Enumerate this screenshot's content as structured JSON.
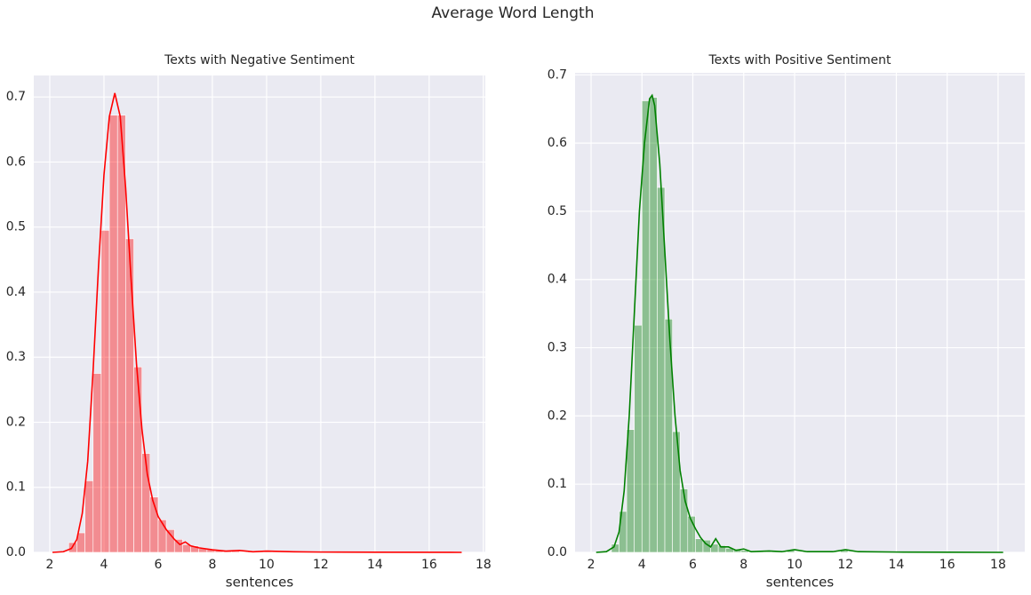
{
  "title": "Average Word Length",
  "chart_data": [
    {
      "type": "histogram",
      "title": "Texts with Negative Sentiment",
      "xlabel": "sentences",
      "color": "red",
      "grid": true,
      "xlim": [
        1.41,
        18.07
      ],
      "ylim": [
        0,
        0.733
      ],
      "xticks": [
        2,
        4,
        6,
        8,
        10,
        12,
        14,
        16,
        18
      ],
      "yticks": [
        {
          "value": 0,
          "label": "0.0"
        },
        0.1,
        0.2,
        0.3,
        0.4,
        0.5,
        0.6,
        0.7
      ],
      "bins": [
        2.1,
        2.4,
        2.7,
        3.0,
        3.3,
        3.6,
        3.9,
        4.2,
        4.5,
        4.8,
        5.1,
        5.4,
        5.7,
        6.0,
        6.3,
        6.6,
        6.9,
        7.2,
        7.5,
        7.8,
        8.1,
        8.4,
        8.7,
        9.0,
        9.3,
        9.6,
        9.9,
        10.2,
        10.5,
        10.8,
        11.1,
        11.4,
        11.7,
        12.0,
        12.3,
        12.6,
        12.9,
        13.2,
        13.5,
        13.8,
        14.1,
        14.4,
        14.7,
        15.0,
        15.3,
        15.6,
        15.9,
        16.2,
        16.5,
        16.8,
        17.1
      ],
      "values": [
        0,
        0.001,
        0.015,
        0.03,
        0.11,
        0.275,
        0.495,
        0.672,
        0.672,
        0.482,
        0.285,
        0.152,
        0.085,
        0.05,
        0.035,
        0.02,
        0.012,
        0.01,
        0.006,
        0.005,
        0.003,
        0.002,
        0.002,
        0.001,
        0.002,
        0.001,
        0.002,
        0.001,
        0.001,
        0.001,
        0.001,
        0.0005,
        0,
        0.0005,
        0,
        0,
        0,
        0,
        0,
        0,
        0,
        0,
        0,
        0,
        0,
        0.0005,
        0,
        0,
        0,
        0.0005
      ],
      "kde_x": [
        2.1,
        2.5,
        2.8,
        3.0,
        3.2,
        3.4,
        3.6,
        3.8,
        4.0,
        4.2,
        4.4,
        4.6,
        4.8,
        5.0,
        5.2,
        5.4,
        5.6,
        5.8,
        6.0,
        6.3,
        6.6,
        6.8,
        7.0,
        7.2,
        7.5,
        8.0,
        8.5,
        9.0,
        9.5,
        10.0,
        11.0,
        12.0,
        14.0,
        17.2
      ],
      "kde_y": [
        0,
        0.001,
        0.006,
        0.02,
        0.06,
        0.14,
        0.28,
        0.44,
        0.58,
        0.67,
        0.706,
        0.67,
        0.56,
        0.42,
        0.29,
        0.19,
        0.12,
        0.08,
        0.055,
        0.035,
        0.02,
        0.012,
        0.016,
        0.01,
        0.007,
        0.004,
        0.002,
        0.003,
        0.001,
        0.002,
        0.001,
        0.0005,
        0.0003,
        0
      ]
    },
    {
      "type": "histogram",
      "title": "Texts with Positive Sentiment",
      "xlabel": "sentences",
      "color": "green",
      "grid": true,
      "xlim": [
        1.37,
        19.05
      ],
      "ylim": [
        0,
        0.703
      ],
      "xticks": [
        2,
        4,
        6,
        8,
        10,
        12,
        14,
        16,
        18
      ],
      "yticks": [
        {
          "value": 0,
          "label": "0.0"
        },
        0.1,
        0.2,
        0.3,
        0.4,
        0.5,
        0.6,
        0.7
      ],
      "bins": [
        2.2,
        2.5,
        2.8,
        3.1,
        3.4,
        3.7,
        4.0,
        4.3,
        4.6,
        4.9,
        5.2,
        5.5,
        5.8,
        6.1,
        6.4,
        6.7,
        7.0,
        7.3,
        7.6,
        7.9,
        8.2,
        8.5,
        8.8,
        9.1,
        9.4,
        9.7,
        10.0,
        10.3,
        10.6,
        10.9,
        11.2,
        11.5,
        11.8,
        12.1,
        12.4,
        12.7,
        13.0,
        13.3,
        13.6,
        13.9,
        14.2,
        14.5,
        14.8,
        15.1,
        15.4,
        15.7,
        16.0,
        16.3,
        16.6,
        16.9,
        17.2
      ],
      "values": [
        0,
        0.001,
        0.012,
        0.06,
        0.18,
        0.333,
        0.662,
        0.667,
        0.535,
        0.342,
        0.177,
        0.093,
        0.053,
        0.02,
        0.018,
        0.012,
        0.01,
        0.006,
        0.005,
        0.003,
        0.002,
        0.001,
        0.001,
        0.002,
        0.001,
        0.003,
        0.001,
        0.001,
        0.001,
        0.001,
        0.001,
        0.001,
        0.003,
        0.001,
        0,
        0,
        0.0005,
        0,
        0,
        0,
        0,
        0,
        0,
        0,
        0,
        0,
        0.0005,
        0,
        0,
        0
      ],
      "kde_x": [
        2.2,
        2.6,
        2.9,
        3.1,
        3.3,
        3.5,
        3.7,
        3.9,
        4.1,
        4.3,
        4.4,
        4.5,
        4.7,
        4.9,
        5.1,
        5.3,
        5.5,
        5.7,
        5.9,
        6.1,
        6.3,
        6.5,
        6.7,
        6.9,
        7.1,
        7.4,
        7.7,
        8.0,
        8.3,
        9.0,
        9.5,
        10.0,
        10.5,
        11.5,
        12.0,
        12.5,
        14.0,
        16.0,
        18.2
      ],
      "kde_y": [
        0,
        0.001,
        0.008,
        0.03,
        0.09,
        0.2,
        0.35,
        0.5,
        0.6,
        0.665,
        0.67,
        0.655,
        0.57,
        0.44,
        0.31,
        0.2,
        0.12,
        0.075,
        0.05,
        0.035,
        0.022,
        0.013,
        0.008,
        0.02,
        0.008,
        0.008,
        0.003,
        0.005,
        0.001,
        0.002,
        0.001,
        0.004,
        0.001,
        0.001,
        0.004,
        0.001,
        0.0005,
        0.0003,
        0
      ]
    }
  ]
}
